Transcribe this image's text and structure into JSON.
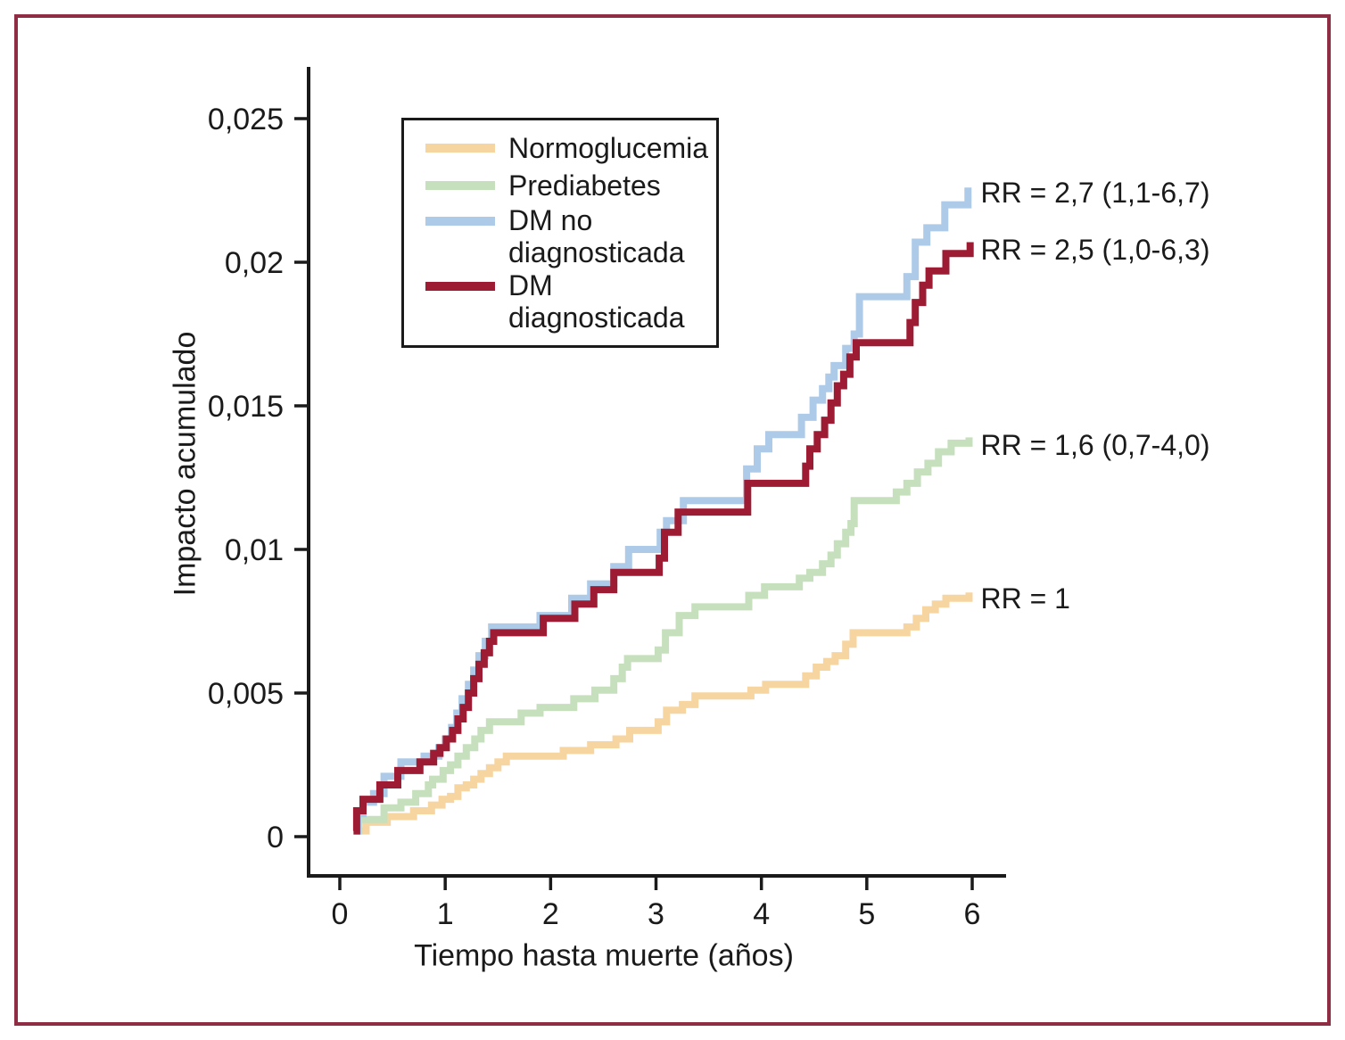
{
  "colors": {
    "frame": "#8E2D43",
    "axis": "#1a1a1a",
    "text": "#1a1a1a",
    "background": "#ffffff"
  },
  "legend": {
    "items": [
      {
        "label": "Normoglucemia",
        "label2": ""
      },
      {
        "label": "Prediabetes",
        "label2": ""
      },
      {
        "label": "DM no",
        "label2": "diagnosticada"
      },
      {
        "label": "DM",
        "label2": "diagnosticada"
      }
    ]
  },
  "chart_data": {
    "type": "line",
    "subtype": "step-after",
    "title": "",
    "xlabel": "Tiempo hasta muerte (años)",
    "ylabel": "Impacto acumulado",
    "xlim": [
      -0.34,
      6.33
    ],
    "ylim": [
      -0.0014,
      0.0268
    ],
    "grid": false,
    "legend_position": "upper-left-inside",
    "x_ticks": [
      0,
      1,
      2,
      3,
      4,
      5,
      6
    ],
    "x_tick_labels": [
      "0",
      "1",
      "2",
      "3",
      "4",
      "5",
      "6"
    ],
    "y_ticks": [
      0,
      0.005,
      0.01,
      0.015,
      0.02,
      0.025
    ],
    "y_tick_labels": [
      "0",
      "0,005",
      "0,01",
      "0,015",
      "0,02",
      "0,025"
    ],
    "series": [
      {
        "name": "Normoglucemia",
        "color": "#F7D5A1",
        "rr": "RR = 1",
        "points": [
          [
            0.13,
            0.0002
          ],
          [
            0.25,
            0.0005
          ],
          [
            0.45,
            0.0007
          ],
          [
            0.7,
            0.0009
          ],
          [
            0.87,
            0.0011
          ],
          [
            0.97,
            0.0013
          ],
          [
            1.05,
            0.0014
          ],
          [
            1.12,
            0.0017
          ],
          [
            1.2,
            0.0018
          ],
          [
            1.27,
            0.002
          ],
          [
            1.34,
            0.0022
          ],
          [
            1.42,
            0.0024
          ],
          [
            1.5,
            0.0026
          ],
          [
            1.58,
            0.0028
          ],
          [
            2.12,
            0.003
          ],
          [
            2.38,
            0.0032
          ],
          [
            2.62,
            0.0034
          ],
          [
            2.75,
            0.0037
          ],
          [
            3.02,
            0.004
          ],
          [
            3.1,
            0.0044
          ],
          [
            3.25,
            0.0046
          ],
          [
            3.37,
            0.0049
          ],
          [
            3.9,
            0.0051
          ],
          [
            4.04,
            0.0053
          ],
          [
            4.42,
            0.0056
          ],
          [
            4.52,
            0.0059
          ],
          [
            4.62,
            0.0061
          ],
          [
            4.7,
            0.0063
          ],
          [
            4.8,
            0.0067
          ],
          [
            4.87,
            0.0071
          ],
          [
            5.38,
            0.0073
          ],
          [
            5.47,
            0.0076
          ],
          [
            5.56,
            0.0079
          ],
          [
            5.65,
            0.0081
          ],
          [
            5.75,
            0.0083
          ],
          [
            5.97,
            0.0085
          ]
        ]
      },
      {
        "name": "Prediabetes",
        "color": "#C6E0BD",
        "rr": "RR = 1,6 (0,7-4,0)",
        "points": [
          [
            0.13,
            0.0002
          ],
          [
            0.18,
            0.0006
          ],
          [
            0.42,
            0.001
          ],
          [
            0.58,
            0.0012
          ],
          [
            0.72,
            0.0015
          ],
          [
            0.84,
            0.0018
          ],
          [
            0.88,
            0.002
          ],
          [
            0.98,
            0.0023
          ],
          [
            1.05,
            0.0025
          ],
          [
            1.12,
            0.0028
          ],
          [
            1.2,
            0.0031
          ],
          [
            1.28,
            0.0034
          ],
          [
            1.34,
            0.0037
          ],
          [
            1.42,
            0.004
          ],
          [
            1.72,
            0.0043
          ],
          [
            1.9,
            0.0045
          ],
          [
            2.22,
            0.0048
          ],
          [
            2.42,
            0.0051
          ],
          [
            2.6,
            0.0055
          ],
          [
            2.68,
            0.0059
          ],
          [
            2.73,
            0.0062
          ],
          [
            3.02,
            0.0065
          ],
          [
            3.09,
            0.0071
          ],
          [
            3.22,
            0.0077
          ],
          [
            3.37,
            0.008
          ],
          [
            3.88,
            0.0084
          ],
          [
            4.03,
            0.0087
          ],
          [
            4.36,
            0.009
          ],
          [
            4.46,
            0.0092
          ],
          [
            4.58,
            0.0095
          ],
          [
            4.66,
            0.0098
          ],
          [
            4.72,
            0.0102
          ],
          [
            4.8,
            0.0106
          ],
          [
            4.85,
            0.0109
          ],
          [
            4.88,
            0.0117
          ],
          [
            5.28,
            0.012
          ],
          [
            5.38,
            0.0123
          ],
          [
            5.48,
            0.0127
          ],
          [
            5.58,
            0.013
          ],
          [
            5.68,
            0.0134
          ],
          [
            5.8,
            0.0137
          ],
          [
            5.97,
            0.0139
          ]
        ]
      },
      {
        "name": "DM no diagnosticada",
        "color": "#ADCBE8",
        "rr": "RR = 2,7 (1,1-6,7)",
        "points": [
          [
            0.13,
            0.0002
          ],
          [
            0.17,
            0.0008
          ],
          [
            0.22,
            0.0012
          ],
          [
            0.32,
            0.0015
          ],
          [
            0.42,
            0.0021
          ],
          [
            0.58,
            0.0026
          ],
          [
            0.8,
            0.0028
          ],
          [
            0.94,
            0.0031
          ],
          [
            1.0,
            0.0034
          ],
          [
            1.06,
            0.0038
          ],
          [
            1.11,
            0.0043
          ],
          [
            1.16,
            0.0048
          ],
          [
            1.22,
            0.0053
          ],
          [
            1.27,
            0.0058
          ],
          [
            1.32,
            0.0063
          ],
          [
            1.38,
            0.0068
          ],
          [
            1.44,
            0.0073
          ],
          [
            1.9,
            0.0077
          ],
          [
            2.2,
            0.0083
          ],
          [
            2.38,
            0.0088
          ],
          [
            2.6,
            0.0094
          ],
          [
            2.74,
            0.01
          ],
          [
            3.04,
            0.0106
          ],
          [
            3.1,
            0.011
          ],
          [
            3.26,
            0.0117
          ],
          [
            3.86,
            0.0128
          ],
          [
            3.96,
            0.0135
          ],
          [
            4.07,
            0.014
          ],
          [
            4.38,
            0.0146
          ],
          [
            4.49,
            0.0152
          ],
          [
            4.58,
            0.0156
          ],
          [
            4.64,
            0.016
          ],
          [
            4.69,
            0.0164
          ],
          [
            4.8,
            0.017
          ],
          [
            4.88,
            0.0175
          ],
          [
            4.93,
            0.0188
          ],
          [
            5.38,
            0.0195
          ],
          [
            5.46,
            0.0207
          ],
          [
            5.57,
            0.0212
          ],
          [
            5.74,
            0.022
          ],
          [
            5.96,
            0.0226
          ]
        ]
      },
      {
        "name": "DM diagnosticada",
        "color": "#9E1C33",
        "rr": "RR = 2,5 (1,0-6,3)",
        "points": [
          [
            0.13,
            0.0002
          ],
          [
            0.16,
            0.0009
          ],
          [
            0.22,
            0.0013
          ],
          [
            0.38,
            0.0018
          ],
          [
            0.55,
            0.0023
          ],
          [
            0.76,
            0.0026
          ],
          [
            0.89,
            0.0029
          ],
          [
            0.95,
            0.0031
          ],
          [
            1.01,
            0.0034
          ],
          [
            1.07,
            0.0037
          ],
          [
            1.12,
            0.0041
          ],
          [
            1.17,
            0.0045
          ],
          [
            1.22,
            0.005
          ],
          [
            1.27,
            0.0055
          ],
          [
            1.32,
            0.006
          ],
          [
            1.37,
            0.0064
          ],
          [
            1.42,
            0.0068
          ],
          [
            1.46,
            0.0071
          ],
          [
            1.93,
            0.0076
          ],
          [
            2.23,
            0.0081
          ],
          [
            2.41,
            0.0086
          ],
          [
            2.6,
            0.0092
          ],
          [
            3.03,
            0.0097
          ],
          [
            3.08,
            0.0106
          ],
          [
            3.21,
            0.0113
          ],
          [
            3.87,
            0.0123
          ],
          [
            4.42,
            0.0129
          ],
          [
            4.46,
            0.0135
          ],
          [
            4.53,
            0.014
          ],
          [
            4.6,
            0.0145
          ],
          [
            4.66,
            0.0151
          ],
          [
            4.72,
            0.0157
          ],
          [
            4.78,
            0.0161
          ],
          [
            4.84,
            0.0167
          ],
          [
            4.9,
            0.0172
          ],
          [
            5.41,
            0.0179
          ],
          [
            5.46,
            0.0186
          ],
          [
            5.53,
            0.0192
          ],
          [
            5.59,
            0.0197
          ],
          [
            5.75,
            0.0203
          ],
          [
            5.98,
            0.0207
          ]
        ]
      }
    ],
    "annotations": [
      {
        "text": "RR = 2,7 (1,1-6,7)",
        "x": 6.08,
        "y": 0.0224
      },
      {
        "text": "RR = 2,5 (1,0-6,3)",
        "x": 6.08,
        "y": 0.0204
      },
      {
        "text": "RR = 1,6 (0,7-4,0)",
        "x": 6.08,
        "y": 0.0136
      },
      {
        "text": "RR = 1",
        "x": 6.08,
        "y": 0.00825
      }
    ]
  }
}
